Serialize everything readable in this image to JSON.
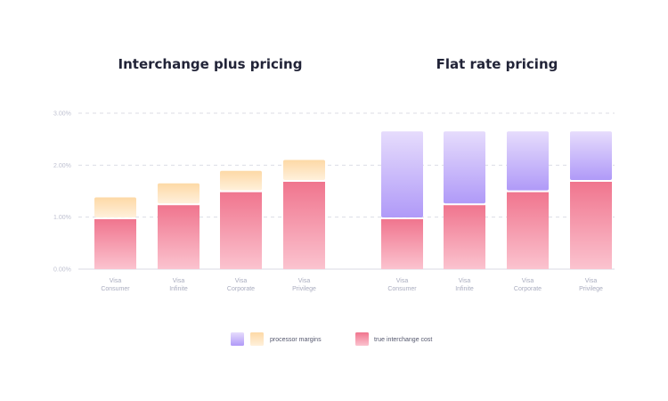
{
  "chart_data": {
    "type": "bar",
    "stacked": true,
    "ylim": [
      0,
      3
    ],
    "yticks": [
      "0.00%",
      "1.00%",
      "2.00%",
      "3.00%"
    ],
    "grid": true,
    "legend_placement": "bottom-center",
    "colors": {
      "true_interchange_cost_top": "#f0758e",
      "true_interchange_cost_bottom": "#fbc3cf",
      "margin_interchange_plus_top": "#fdd9a6",
      "margin_interchange_plus_bottom": "#fff0db",
      "margin_flat_rate_top": "#e6dcfc",
      "margin_flat_rate_bottom": "#b09af8"
    },
    "panels": [
      {
        "title": "Interchange plus pricing",
        "categories": [
          [
            "Visa",
            "Consumer"
          ],
          [
            "Visa",
            "Infinite"
          ],
          [
            "Visa",
            "Corporate"
          ],
          [
            "Visa",
            "Privilege"
          ]
        ],
        "series": [
          {
            "name": "true interchange cost",
            "values": [
              0.96,
              1.23,
              1.48,
              1.68
            ]
          },
          {
            "name": "processor margins",
            "values": [
              0.42,
              0.42,
              0.41,
              0.42
            ]
          }
        ]
      },
      {
        "title": "Flat rate pricing",
        "categories": [
          [
            "Visa",
            "Consumer"
          ],
          [
            "Visa",
            "Infinite"
          ],
          [
            "Visa",
            "Corporate"
          ],
          [
            "Visa",
            "Privilege"
          ]
        ],
        "series": [
          {
            "name": "true interchange cost",
            "values": [
              0.96,
              1.23,
              1.48,
              1.68
            ]
          },
          {
            "name": "processor margins",
            "values": [
              1.69,
              1.42,
              1.17,
              0.97
            ]
          }
        ]
      }
    ],
    "legend": [
      {
        "label": "processor margins",
        "swatches": [
          "flat_rate",
          "interchange_plus"
        ]
      },
      {
        "label": "true interchange cost",
        "swatches": [
          "true_interchange_cost"
        ]
      }
    ]
  }
}
